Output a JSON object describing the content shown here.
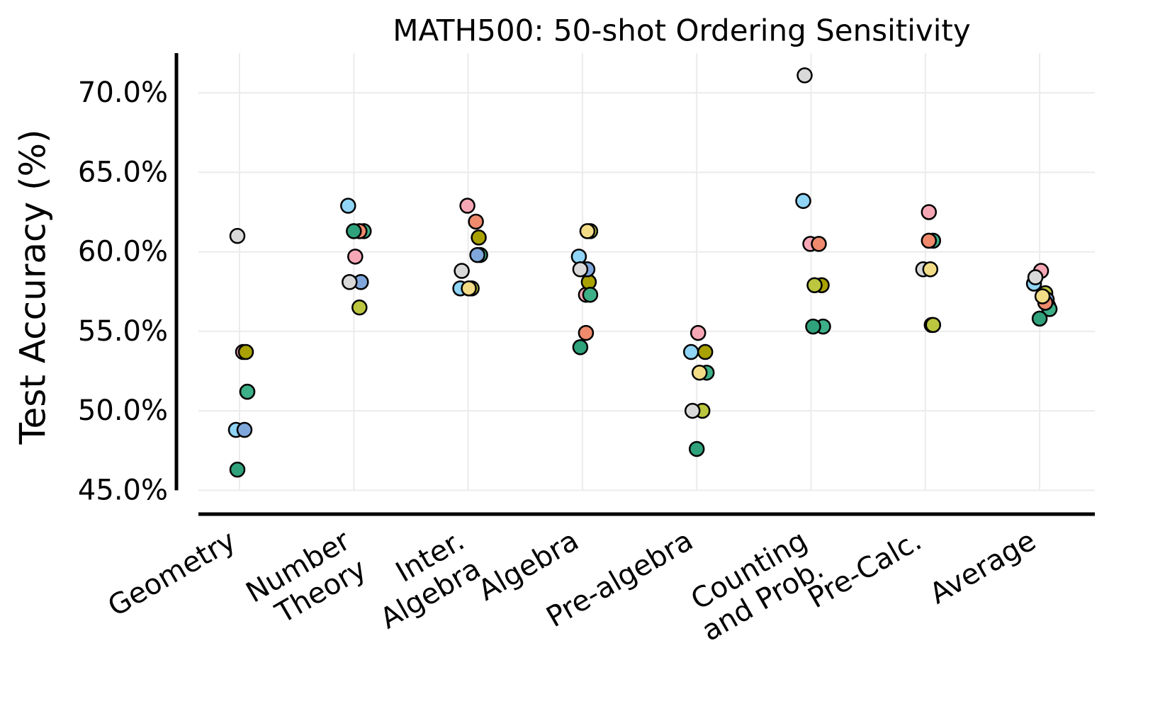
{
  "chart_data": {
    "type": "strip",
    "title": "MATH500: 50-shot Ordering Sensitivity",
    "y_label": "Test Accuracy (%)",
    "categories": [
      [
        "Geometry"
      ],
      [
        "Number",
        "Theory"
      ],
      [
        "Inter.",
        "Algebra"
      ],
      [
        "Algebra"
      ],
      [
        "Pre-algebra"
      ],
      [
        "Counting",
        "and Prob."
      ],
      [
        "Pre-Calc."
      ],
      [
        "Average"
      ]
    ],
    "ylim": [
      43.5,
      72.5
    ],
    "yticks": [
      {
        "value": 45,
        "label": "45.0%"
      },
      {
        "value": 50,
        "label": "50.0%"
      },
      {
        "value": 55,
        "label": "55.0%"
      },
      {
        "value": 60,
        "label": "60.0%"
      },
      {
        "value": 65,
        "label": "65.0%"
      },
      {
        "value": 70,
        "label": "70.0%"
      }
    ],
    "grid": true,
    "series": [
      {
        "color": "#f6a7b6",
        "values": [
          53.7,
          59.7,
          62.9,
          57.3,
          54.9,
          60.5,
          62.5,
          58.8
        ]
      },
      {
        "color": "#a9a100",
        "values": [
          53.7,
          null,
          60.9,
          58.1,
          53.7,
          57.9,
          55.4,
          56.6
        ]
      },
      {
        "color": "#bcc63e",
        "values": [
          51.2,
          56.5,
          57.7,
          61.3,
          50.0,
          57.9,
          55.4,
          57.4
        ]
      },
      {
        "color": "#3db088",
        "values": [
          51.2,
          61.3,
          59.8,
          57.3,
          52.4,
          55.3,
          60.7,
          56.4
        ]
      },
      {
        "color": "#90d4f6",
        "values": [
          48.8,
          62.9,
          57.7,
          59.7,
          53.7,
          63.2,
          null,
          58.0
        ]
      },
      {
        "color": "#7fa7dc",
        "values": [
          48.8,
          58.1,
          59.8,
          58.9,
          null,
          null,
          null,
          57.0
        ]
      },
      {
        "color": "#d9d9d9",
        "values": [
          61.0,
          58.1,
          58.8,
          58.9,
          50.0,
          71.1,
          58.9,
          58.4
        ]
      },
      {
        "color": "#ef8a6c",
        "values": [
          null,
          61.3,
          61.9,
          54.9,
          null,
          60.5,
          60.7,
          56.8
        ]
      },
      {
        "color": "#f2dc86",
        "values": [
          null,
          null,
          57.7,
          61.3,
          52.4,
          null,
          58.9,
          57.2
        ]
      },
      {
        "color": "#2fa27b",
        "values": [
          46.3,
          61.3,
          null,
          54.0,
          47.6,
          55.3,
          null,
          55.8
        ]
      }
    ]
  }
}
